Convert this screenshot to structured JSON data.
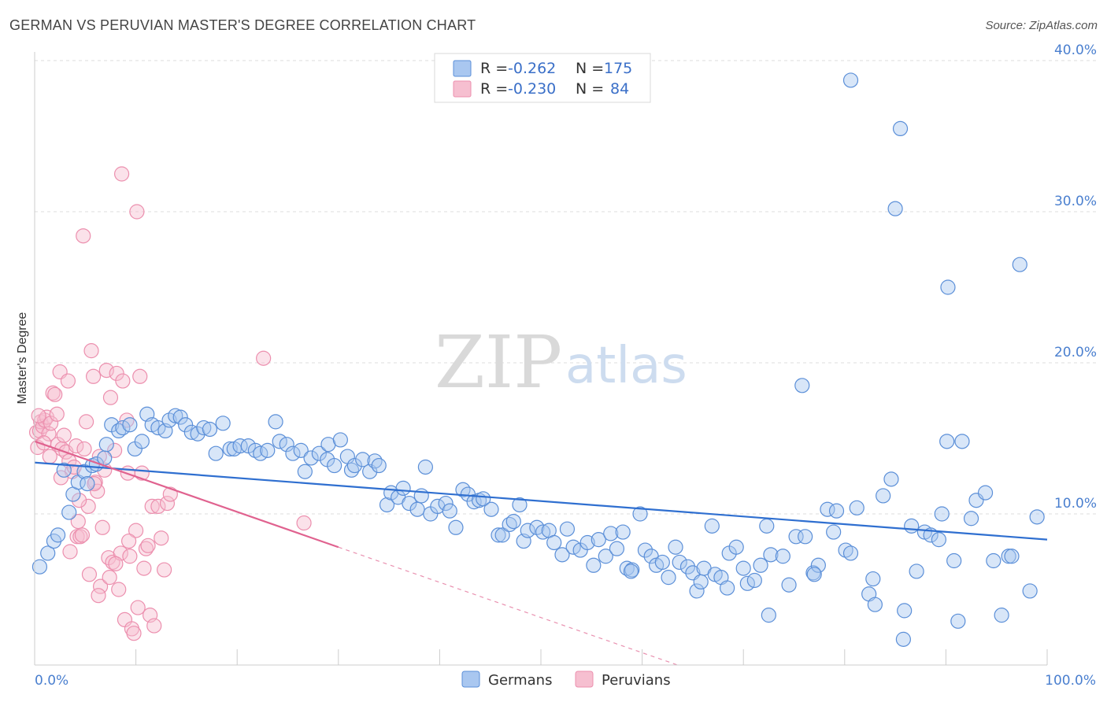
{
  "title": "GERMAN VS PERUVIAN MASTER'S DEGREE CORRELATION CHART",
  "source": "Source: ZipAtlas.com",
  "watermark": {
    "zip": "ZIP",
    "atlas": "atlas"
  },
  "colors": {
    "german_fill": "#a9c7f0",
    "german_stroke": "#5b8fd8",
    "german_line": "#2f6fd0",
    "peruvian_fill": "#f6bfd0",
    "peruvian_stroke": "#ec8fae",
    "peruvian_line": "#e0628f",
    "grid": "#dddddd",
    "axis_label": "#4a7fcf"
  },
  "legend": {
    "rows": [
      {
        "r_label": "R =",
        "r_value": "-0.262",
        "n_label": "N =",
        "n_value": "175"
      },
      {
        "r_label": "R =",
        "r_value": "-0.230",
        "n_label": "N =",
        "n_value": "84"
      }
    ]
  },
  "bottom_legend": {
    "germans": "Germans",
    "peruvians": "Peruvians"
  },
  "chart_data": {
    "type": "scatter",
    "title": "GERMAN VS PERUVIAN MASTER'S DEGREE CORRELATION CHART",
    "xlabel": "",
    "ylabel": "Master's Degree",
    "xlim": [
      0,
      100
    ],
    "ylim": [
      0,
      40
    ],
    "x_tick_labels": [
      "0.0%",
      "100.0%"
    ],
    "y_ticks": [
      10,
      20,
      30,
      40
    ],
    "y_tick_labels": [
      "10.0%",
      "20.0%",
      "30.0%",
      "40.0%"
    ],
    "grid": true,
    "legend_position": "top-center",
    "series": [
      {
        "name": "Germans",
        "r": -0.262,
        "n": 175,
        "trend": {
          "x": [
            0,
            100
          ],
          "y": [
            13.4,
            8.3
          ]
        },
        "points": [
          [
            0.5,
            6.5
          ],
          [
            1.3,
            7.4
          ],
          [
            1.9,
            8.2
          ],
          [
            2.3,
            8.6
          ],
          [
            2.9,
            12.9
          ],
          [
            3.4,
            10.1
          ],
          [
            3.8,
            11.3
          ],
          [
            4.3,
            12.1
          ],
          [
            4.9,
            12.8
          ],
          [
            5.2,
            12.0
          ],
          [
            5.7,
            13.2
          ],
          [
            6.1,
            13.3
          ],
          [
            6.9,
            13.7
          ],
          [
            7.1,
            14.6
          ],
          [
            7.6,
            15.9
          ],
          [
            8.3,
            15.5
          ],
          [
            8.7,
            15.7
          ],
          [
            9.4,
            15.9
          ],
          [
            9.9,
            14.3
          ],
          [
            10.6,
            14.8
          ],
          [
            11.1,
            16.6
          ],
          [
            11.6,
            15.9
          ],
          [
            12.2,
            15.7
          ],
          [
            12.9,
            15.5
          ],
          [
            13.3,
            16.2
          ],
          [
            13.9,
            16.5
          ],
          [
            14.4,
            16.4
          ],
          [
            14.9,
            15.9
          ],
          [
            15.5,
            15.4
          ],
          [
            16.1,
            15.3
          ],
          [
            16.7,
            15.7
          ],
          [
            17.3,
            15.6
          ],
          [
            17.9,
            14.0
          ],
          [
            18.6,
            16.0
          ],
          [
            19.3,
            14.3
          ],
          [
            19.7,
            14.3
          ],
          [
            20.3,
            14.5
          ],
          [
            21.1,
            14.5
          ],
          [
            21.8,
            14.2
          ],
          [
            22.3,
            14.0
          ],
          [
            23.0,
            14.2
          ],
          [
            23.8,
            16.1
          ],
          [
            24.2,
            14.8
          ],
          [
            24.9,
            14.6
          ],
          [
            25.5,
            14.0
          ],
          [
            26.3,
            14.2
          ],
          [
            26.7,
            12.8
          ],
          [
            27.3,
            13.7
          ],
          [
            28.1,
            14.0
          ],
          [
            28.9,
            13.6
          ],
          [
            29.0,
            14.6
          ],
          [
            29.6,
            13.2
          ],
          [
            30.2,
            14.9
          ],
          [
            30.9,
            13.8
          ],
          [
            31.3,
            12.9
          ],
          [
            31.6,
            13.2
          ],
          [
            32.4,
            13.6
          ],
          [
            33.1,
            12.8
          ],
          [
            33.6,
            13.5
          ],
          [
            34.0,
            13.2
          ],
          [
            34.8,
            10.6
          ],
          [
            35.2,
            11.4
          ],
          [
            35.9,
            11.1
          ],
          [
            36.4,
            11.7
          ],
          [
            37.0,
            10.7
          ],
          [
            37.8,
            10.3
          ],
          [
            38.2,
            11.2
          ],
          [
            38.6,
            13.1
          ],
          [
            39.1,
            10.0
          ],
          [
            39.8,
            10.5
          ],
          [
            40.6,
            10.7
          ],
          [
            41.0,
            10.2
          ],
          [
            41.6,
            9.1
          ],
          [
            42.3,
            11.6
          ],
          [
            42.8,
            11.3
          ],
          [
            43.4,
            10.8
          ],
          [
            43.9,
            10.9
          ],
          [
            44.3,
            11.0
          ],
          [
            45.1,
            10.3
          ],
          [
            45.8,
            8.6
          ],
          [
            46.2,
            8.6
          ],
          [
            46.9,
            9.3
          ],
          [
            47.3,
            9.5
          ],
          [
            47.9,
            10.6
          ],
          [
            48.3,
            8.2
          ],
          [
            48.7,
            8.9
          ],
          [
            49.6,
            9.1
          ],
          [
            50.2,
            8.8
          ],
          [
            50.8,
            8.9
          ],
          [
            51.3,
            8.1
          ],
          [
            52.1,
            7.3
          ],
          [
            52.6,
            9.0
          ],
          [
            53.2,
            7.8
          ],
          [
            53.9,
            7.6
          ],
          [
            54.6,
            8.1
          ],
          [
            55.2,
            6.6
          ],
          [
            55.7,
            8.3
          ],
          [
            56.4,
            7.2
          ],
          [
            56.9,
            8.7
          ],
          [
            57.5,
            7.7
          ],
          [
            58.1,
            8.8
          ],
          [
            58.5,
            6.4
          ],
          [
            59.0,
            6.3
          ],
          [
            59.8,
            10.0
          ],
          [
            60.3,
            7.6
          ],
          [
            60.9,
            7.2
          ],
          [
            61.4,
            6.6
          ],
          [
            62.0,
            6.8
          ],
          [
            62.6,
            5.8
          ],
          [
            63.3,
            7.8
          ],
          [
            63.7,
            6.8
          ],
          [
            64.5,
            6.5
          ],
          [
            65.0,
            6.1
          ],
          [
            65.4,
            4.9
          ],
          [
            66.1,
            6.4
          ],
          [
            66.9,
            9.2
          ],
          [
            67.2,
            6.0
          ],
          [
            67.8,
            5.8
          ],
          [
            68.6,
            7.4
          ],
          [
            69.3,
            7.8
          ],
          [
            70.0,
            6.4
          ],
          [
            70.4,
            5.4
          ],
          [
            71.1,
            5.6
          ],
          [
            71.7,
            6.6
          ],
          [
            72.3,
            9.2
          ],
          [
            72.7,
            7.3
          ],
          [
            73.9,
            7.2
          ],
          [
            74.5,
            5.3
          ],
          [
            75.2,
            8.5
          ],
          [
            76.1,
            8.5
          ],
          [
            76.9,
            6.1
          ],
          [
            77.4,
            6.6
          ],
          [
            77.0,
            6.0
          ],
          [
            75.8,
            18.5
          ],
          [
            78.3,
            10.3
          ],
          [
            79.2,
            10.2
          ],
          [
            80.1,
            7.6
          ],
          [
            80.6,
            7.4
          ],
          [
            81.2,
            10.4
          ],
          [
            82.4,
            4.7
          ],
          [
            82.8,
            5.7
          ],
          [
            83.8,
            11.2
          ],
          [
            84.6,
            12.3
          ],
          [
            85.9,
            3.6
          ],
          [
            86.6,
            9.2
          ],
          [
            87.1,
            6.2
          ],
          [
            87.9,
            8.8
          ],
          [
            88.5,
            8.6
          ],
          [
            89.3,
            8.3
          ],
          [
            90.1,
            14.8
          ],
          [
            90.8,
            6.9
          ],
          [
            91.6,
            14.8
          ],
          [
            93.0,
            10.9
          ],
          [
            93.9,
            11.4
          ],
          [
            94.7,
            6.9
          ],
          [
            95.5,
            3.3
          ],
          [
            96.2,
            7.2
          ],
          [
            97.3,
            26.5
          ],
          [
            98.3,
            4.9
          ],
          [
            99.0,
            9.8
          ],
          [
            80.6,
            38.7
          ],
          [
            85.5,
            35.5
          ],
          [
            85.0,
            30.2
          ],
          [
            90.2,
            25.0
          ],
          [
            89.6,
            10.0
          ],
          [
            85.8,
            1.7
          ],
          [
            92.5,
            9.7
          ],
          [
            96.5,
            7.2
          ],
          [
            65.8,
            5.5
          ],
          [
            83.0,
            4.0
          ],
          [
            72.5,
            3.3
          ],
          [
            78.9,
            8.8
          ],
          [
            91.2,
            2.9
          ],
          [
            68.4,
            5.1
          ],
          [
            58.9,
            6.2
          ]
        ]
      },
      {
        "name": "Peruvians",
        "r": -0.23,
        "n": 84,
        "trend": {
          "x": [
            0,
            30
          ],
          "y": [
            14.8,
            7.8
          ]
        },
        "trend_dashed": {
          "x": [
            30,
            100
          ],
          "y": [
            7.8,
            -8.5
          ]
        },
        "points": [
          [
            0.2,
            15.4
          ],
          [
            0.3,
            14.4
          ],
          [
            0.5,
            15.5
          ],
          [
            0.6,
            16.1
          ],
          [
            0.8,
            15.8
          ],
          [
            1.0,
            16.2
          ],
          [
            1.2,
            16.4
          ],
          [
            1.4,
            15.3
          ],
          [
            1.6,
            16.0
          ],
          [
            1.8,
            18.0
          ],
          [
            2.0,
            17.9
          ],
          [
            2.2,
            16.6
          ],
          [
            2.3,
            14.6
          ],
          [
            2.5,
            19.4
          ],
          [
            2.7,
            14.3
          ],
          [
            2.9,
            15.2
          ],
          [
            3.1,
            14.1
          ],
          [
            3.3,
            18.8
          ],
          [
            3.4,
            13.5
          ],
          [
            3.5,
            7.5
          ],
          [
            3.7,
            12.8
          ],
          [
            3.9,
            13.1
          ],
          [
            4.1,
            14.5
          ],
          [
            4.2,
            8.5
          ],
          [
            4.3,
            9.5
          ],
          [
            4.5,
            8.5
          ],
          [
            4.7,
            8.6
          ],
          [
            4.9,
            14.3
          ],
          [
            5.1,
            16.1
          ],
          [
            5.3,
            10.5
          ],
          [
            5.6,
            20.8
          ],
          [
            5.8,
            19.1
          ],
          [
            6.0,
            12.1
          ],
          [
            6.2,
            11.5
          ],
          [
            6.4,
            13.8
          ],
          [
            6.5,
            5.2
          ],
          [
            6.7,
            9.1
          ],
          [
            6.9,
            12.9
          ],
          [
            7.1,
            19.5
          ],
          [
            7.3,
            7.1
          ],
          [
            7.5,
            17.7
          ],
          [
            7.7,
            6.8
          ],
          [
            7.9,
            14.2
          ],
          [
            8.1,
            19.3
          ],
          [
            8.3,
            5.0
          ],
          [
            8.5,
            7.4
          ],
          [
            8.7,
            18.8
          ],
          [
            8.9,
            3.0
          ],
          [
            9.1,
            16.2
          ],
          [
            9.2,
            12.7
          ],
          [
            9.4,
            7.2
          ],
          [
            9.6,
            2.4
          ],
          [
            9.8,
            2.1
          ],
          [
            10.0,
            8.9
          ],
          [
            10.2,
            3.8
          ],
          [
            10.4,
            19.1
          ],
          [
            10.6,
            12.7
          ],
          [
            10.8,
            6.4
          ],
          [
            11.0,
            7.7
          ],
          [
            11.2,
            7.9
          ],
          [
            11.4,
            3.3
          ],
          [
            11.6,
            10.5
          ],
          [
            11.8,
            2.6
          ],
          [
            12.2,
            10.5
          ],
          [
            12.5,
            8.4
          ],
          [
            12.8,
            6.3
          ],
          [
            13.1,
            10.7
          ],
          [
            13.4,
            11.3
          ],
          [
            8.6,
            32.5
          ],
          [
            10.1,
            30.0
          ],
          [
            4.8,
            28.4
          ],
          [
            22.6,
            20.3
          ],
          [
            26.6,
            9.4
          ],
          [
            0.9,
            14.7
          ],
          [
            1.5,
            13.8
          ],
          [
            2.6,
            12.4
          ],
          [
            5.4,
            6.0
          ],
          [
            6.3,
            4.6
          ],
          [
            7.4,
            5.8
          ],
          [
            8.0,
            6.7
          ],
          [
            9.3,
            8.2
          ],
          [
            4.4,
            10.9
          ],
          [
            5.9,
            12.0
          ],
          [
            0.4,
            16.5
          ]
        ]
      }
    ]
  }
}
